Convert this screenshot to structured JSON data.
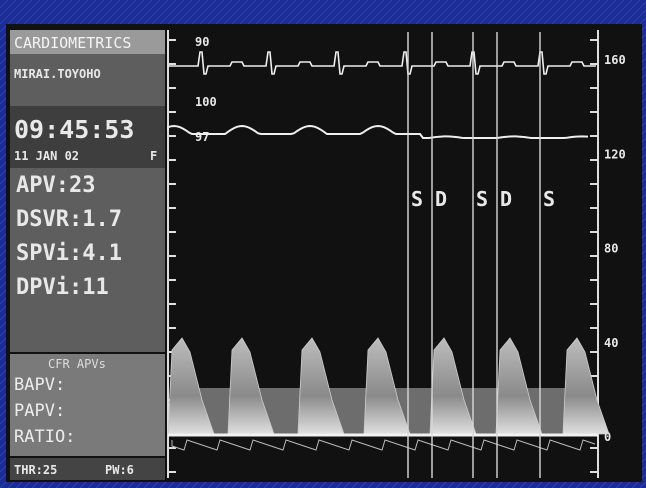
{
  "header": {
    "brand": "CARDIOMETRICS",
    "patient": "MIRAI.TOYOHO",
    "time": "09:45:53",
    "date": "11 JAN 02",
    "flag": "F"
  },
  "readings": [
    "APV:23",
    "DSVR:1.7",
    "SPVi:4.1",
    "DPVi:11"
  ],
  "cfr": {
    "title": "CFR APVs",
    "rows": [
      "BAPV:",
      "PAPV:",
      "RATIO:"
    ]
  },
  "footer": {
    "threshold": "THR:25",
    "pw": "PW:6"
  },
  "trace_labels": {
    "ecg": "90",
    "pressure_top": "100",
    "pressure": "97"
  },
  "scale": [
    "160",
    "120",
    "80",
    "40",
    "0"
  ],
  "markers": [
    "S",
    "D",
    "S",
    "D",
    "S"
  ]
}
